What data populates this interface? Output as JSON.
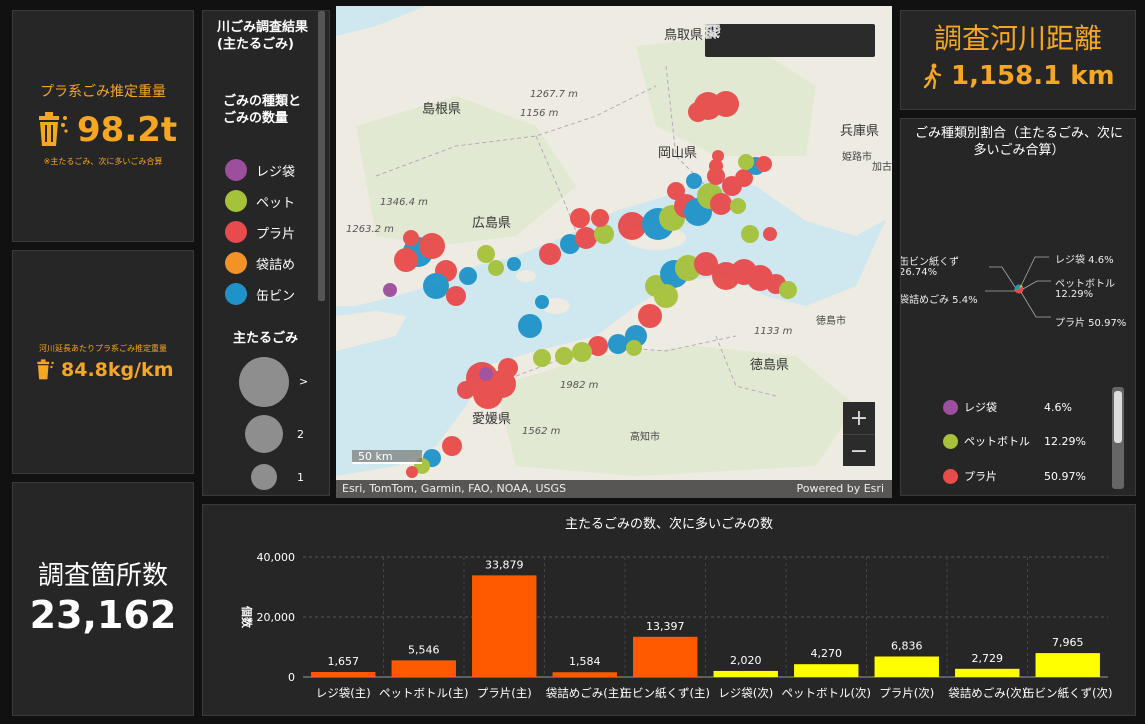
{
  "kpi_weight": {
    "title": "プラ系ごみ推定重量",
    "value": "98.2t",
    "note": "※主たるごみ、次に多いごみ合算",
    "icon": "trash-bin-icon"
  },
  "kpi_perkm": {
    "title": "河川延長あたりプラ系ごみ推定重量",
    "value": "84.8kg/km",
    "icon": "trash-bin-icon"
  },
  "kpi_sites": {
    "title": "調査箇所数",
    "value": "23,162"
  },
  "kpi_distance": {
    "title": "調査河川距離",
    "value": "1,158.1 km",
    "icon": "walking-person-icon"
  },
  "legend": {
    "title": "川ごみ調査結果(主たるごみ)",
    "subtitle": "ごみの種類とごみの数量",
    "items": [
      {
        "label": "レジ袋",
        "color": "#9b4f9c"
      },
      {
        "label": "ペット",
        "color": "#a5c23a"
      },
      {
        "label": "プラ片",
        "color": "#e84b4b"
      },
      {
        "label": "袋詰め",
        "color": "#f39227"
      },
      {
        "label": "缶ビン",
        "color": "#1f93c9"
      }
    ],
    "size_title": "主たるごみ",
    "size_labels": [
      ">",
      "2",
      "1"
    ]
  },
  "map": {
    "labels": [
      "鳥取県",
      "島根県",
      "岡山県",
      "兵庫県",
      "広島県",
      "徳島県",
      "愛媛県",
      "加古"
    ],
    "cities": [
      "姫路市",
      "徳島市",
      "高知市"
    ],
    "elevations": [
      "1267.7 m",
      "1156 m",
      "1346.4 m",
      "1263.2 m",
      "1133 m",
      "1982 m",
      "1562 m"
    ],
    "scale": "50 km",
    "attribution": "Esri, TomTom, Garmin, FAO, NOAA, USGS",
    "powered_by": "Powered by Esri",
    "toolbar": [
      "search-icon",
      "bookmark-icon",
      "list-icon",
      "layers-icon",
      "qr-code-icon"
    ]
  },
  "pie": {
    "title": "ごみ種類別割合（主たるごみ、次に多いごみ合算）",
    "slices": [
      {
        "label": "レジ袋",
        "pct": "4.6%",
        "value": 4.6,
        "color": "#9b4f9c"
      },
      {
        "label": "ペットボトル",
        "pct": "12.29%",
        "value": 12.29,
        "color": "#a5c23a"
      },
      {
        "label": "プラ片",
        "pct": "50.97%",
        "value": 50.97,
        "color": "#e84b4b"
      },
      {
        "label": "袋詰めごみ",
        "pct": "5.4%",
        "value": 5.4,
        "color": "#f39227"
      },
      {
        "label": "缶ビン紙くず",
        "pct": "26.74%",
        "value": 26.74,
        "color": "#1f93c9"
      }
    ],
    "callouts": {
      "rejibukuro": "レジ袋 4.6%",
      "pet": "ペットボトル",
      "pet_pct": "12.29%",
      "purahen": "プラ片 50.97%",
      "fukuro": "袋詰めごみ 5.4%",
      "kanbin": "缶ビン紙くず",
      "kanbin_pct": "26.74%"
    }
  },
  "chart_data": {
    "type": "bar",
    "title": "主たるごみの数、次に多いごみの数",
    "ylabel": "個数",
    "ylim": [
      0,
      40000
    ],
    "yticks": [
      "0",
      "20,000",
      "40,000"
    ],
    "categories": [
      "レジ袋(主)",
      "ペットボトル(主)",
      "プラ片(主)",
      "袋詰めごみ(主)",
      "缶ビン紙くず(主)",
      "レジ袋(次)",
      "ペットボトル(次)",
      "プラ片(次)",
      "袋詰めごみ(次)",
      "缶ビン紙くず(次)"
    ],
    "values": [
      1657,
      5546,
      33879,
      1584,
      13397,
      2020,
      4270,
      6836,
      2729,
      7965
    ],
    "value_labels": [
      "1,657",
      "5,546",
      "33,879",
      "1,584",
      "13,397",
      "2,020",
      "4,270",
      "6,836",
      "2,729",
      "7,965"
    ],
    "colors": [
      "#ff5a00",
      "#ff5a00",
      "#ff5a00",
      "#ff5a00",
      "#ff5a00",
      "#ffff00",
      "#ffff00",
      "#ffff00",
      "#ffff00",
      "#ffff00"
    ],
    "grid": true
  }
}
